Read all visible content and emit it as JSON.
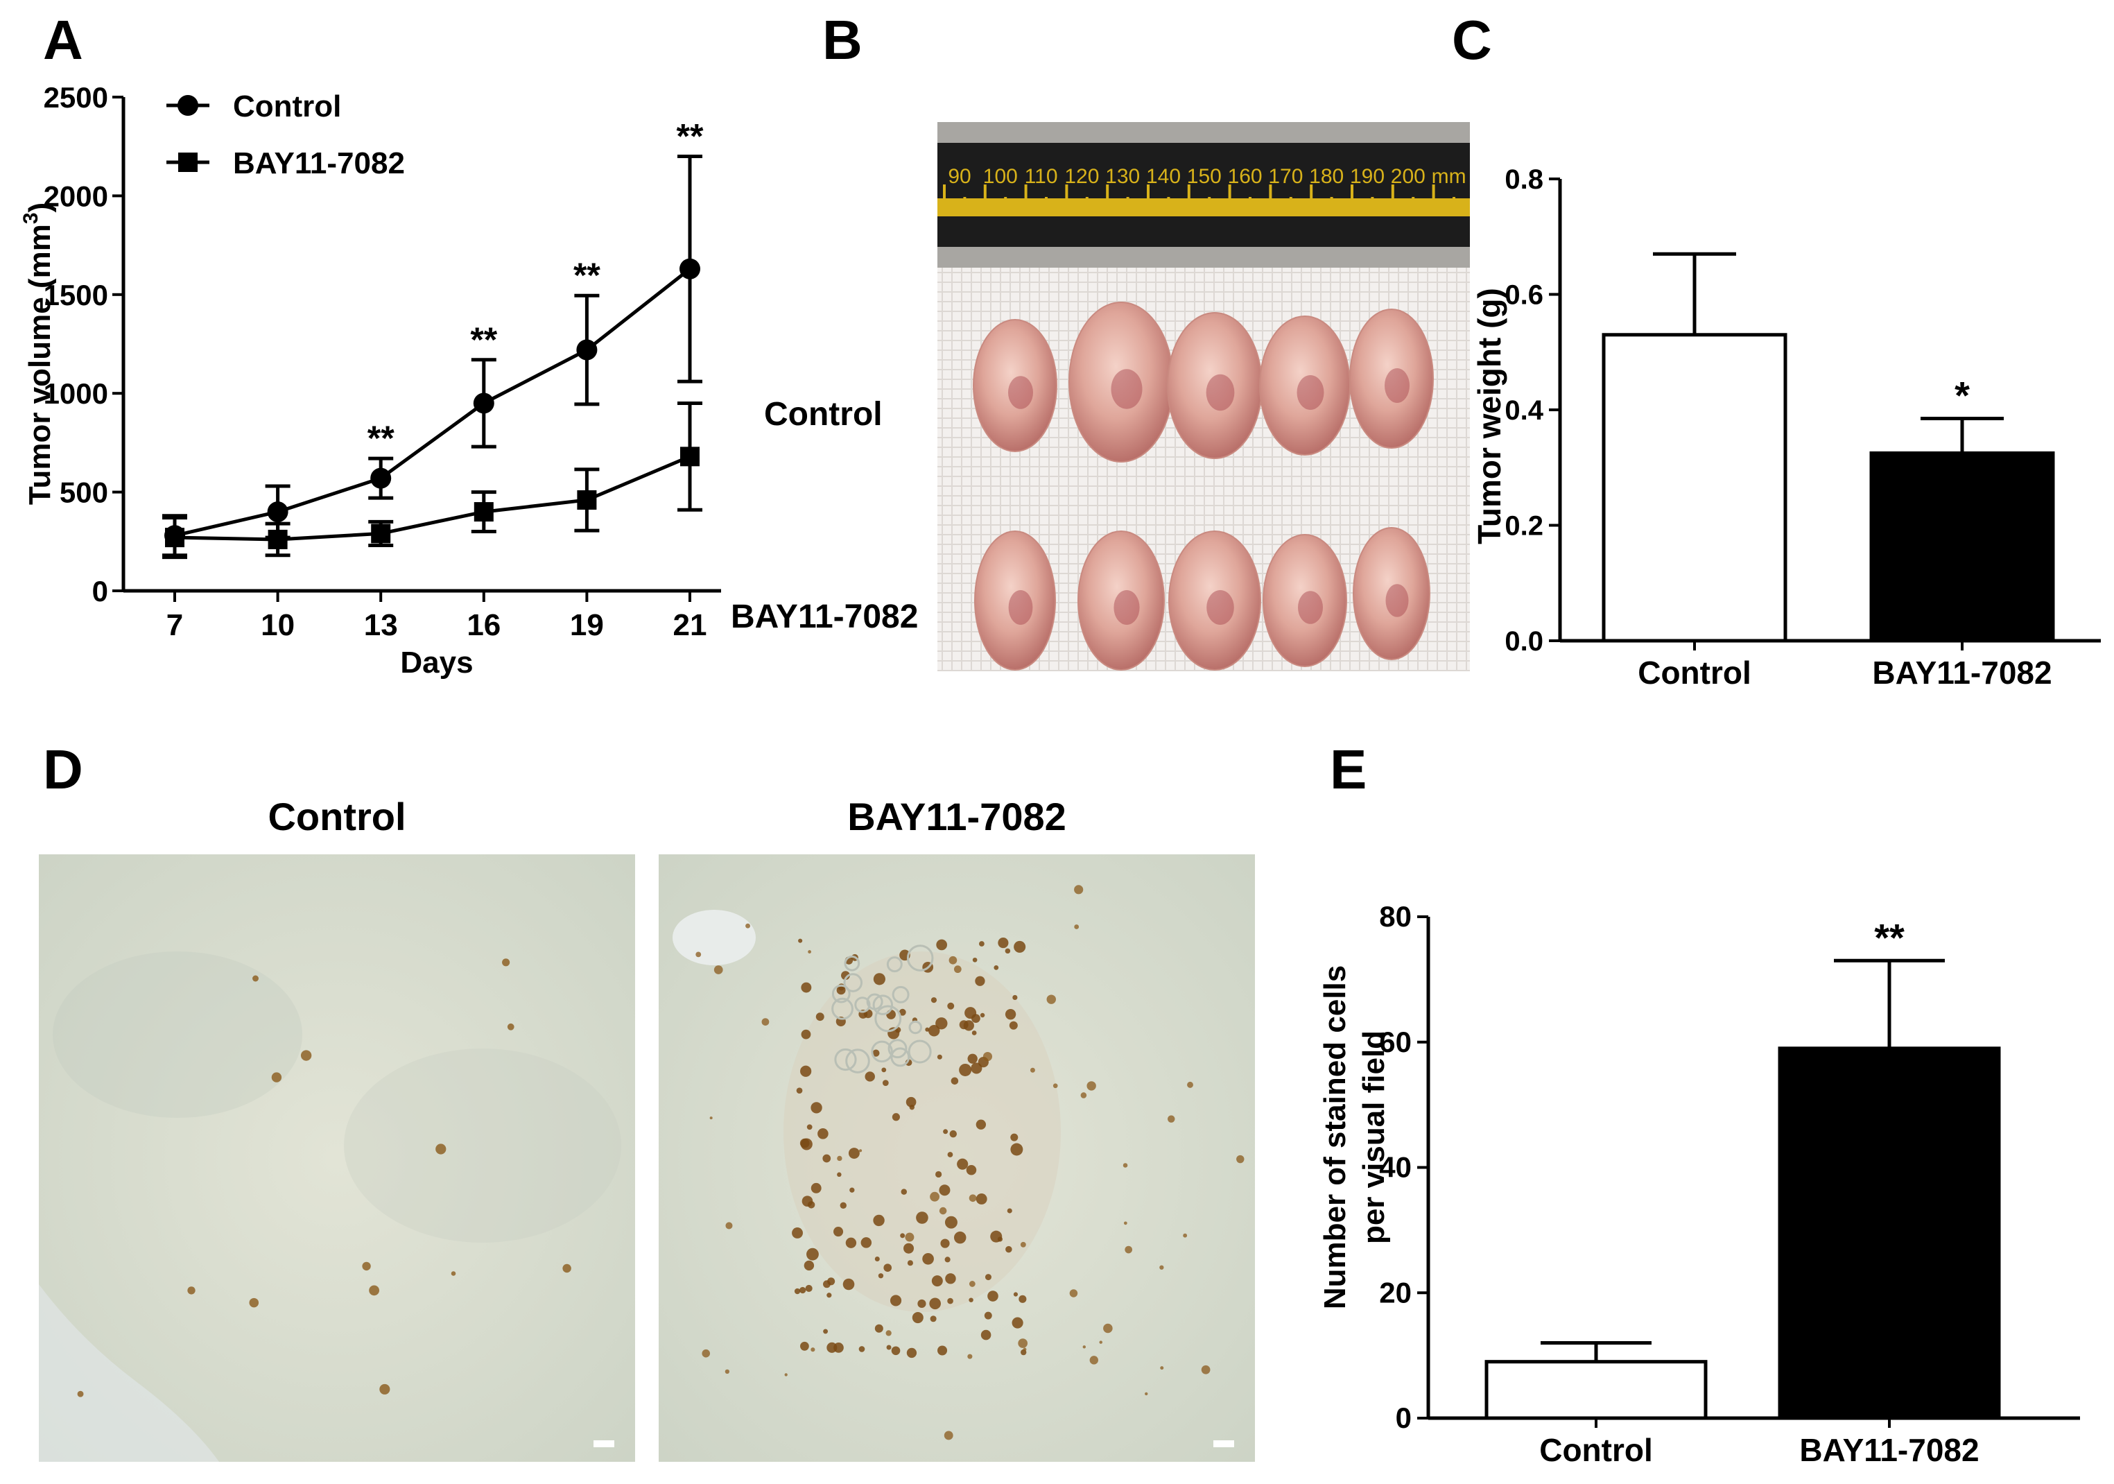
{
  "panels": {
    "A": "A",
    "B": "B",
    "C": "C",
    "D": "D",
    "E": "E"
  },
  "panelA": {
    "chart_data": {
      "type": "line",
      "xlabel": "Days",
      "ylabel": "Tumor volume (mm",
      "ylabel_sup": "3",
      "ylabel_close": ")",
      "categories": [
        "7",
        "10",
        "13",
        "16",
        "19",
        "21"
      ],
      "yticks": [
        "0",
        "500",
        "1000",
        "1500",
        "2000",
        "2500"
      ],
      "ylim": [
        0,
        2500
      ],
      "legend_position": "top-left",
      "series": [
        {
          "name": "Control",
          "marker": "circle",
          "values": [
            280,
            400,
            570,
            950,
            1220,
            1630
          ],
          "errors": [
            100,
            130,
            100,
            220,
            275,
            570
          ]
        },
        {
          "name": "BAY11-7082",
          "marker": "square",
          "values": [
            270,
            260,
            290,
            400,
            460,
            680
          ],
          "errors": [
            100,
            80,
            60,
            100,
            155,
            270
          ]
        }
      ],
      "annotations": [
        "",
        "",
        "**",
        "**",
        "**",
        "**"
      ]
    }
  },
  "panelB": {
    "row_labels": [
      "Control",
      "BAY11-7082"
    ],
    "ruler_numbers": [
      "90",
      "100",
      "110",
      "120",
      "130",
      "140",
      "150",
      "160",
      "170",
      "180",
      "190",
      "200",
      "mm"
    ]
  },
  "panelC": {
    "chart_data": {
      "type": "bar",
      "categories": [
        "Control",
        "BAY11-7082"
      ],
      "values": [
        0.53,
        0.325
      ],
      "errors": [
        0.14,
        0.06
      ],
      "fills": [
        "#ffffff",
        "#000000"
      ],
      "ylabel": "Tumor weight (g)",
      "ylim": [
        0,
        0.8
      ],
      "yticks": [
        "0.0",
        "0.2",
        "0.4",
        "0.6",
        "0.8"
      ],
      "annotations": [
        "",
        "*"
      ]
    }
  },
  "panelD": {
    "titles": [
      "Control",
      "BAY11-7082"
    ]
  },
  "panelE": {
    "chart_data": {
      "type": "bar",
      "categories": [
        "Control",
        "BAY11-7082"
      ],
      "values": [
        9,
        59
      ],
      "errors": [
        3,
        14
      ],
      "fills": [
        "#ffffff",
        "#000000"
      ],
      "ylabel_line1": "Number of stained cells",
      "ylabel_line2": "per visual field",
      "ylim": [
        0,
        80
      ],
      "yticks": [
        "0",
        "20",
        "40",
        "60",
        "80"
      ],
      "annotations": [
        "",
        "**"
      ]
    }
  }
}
